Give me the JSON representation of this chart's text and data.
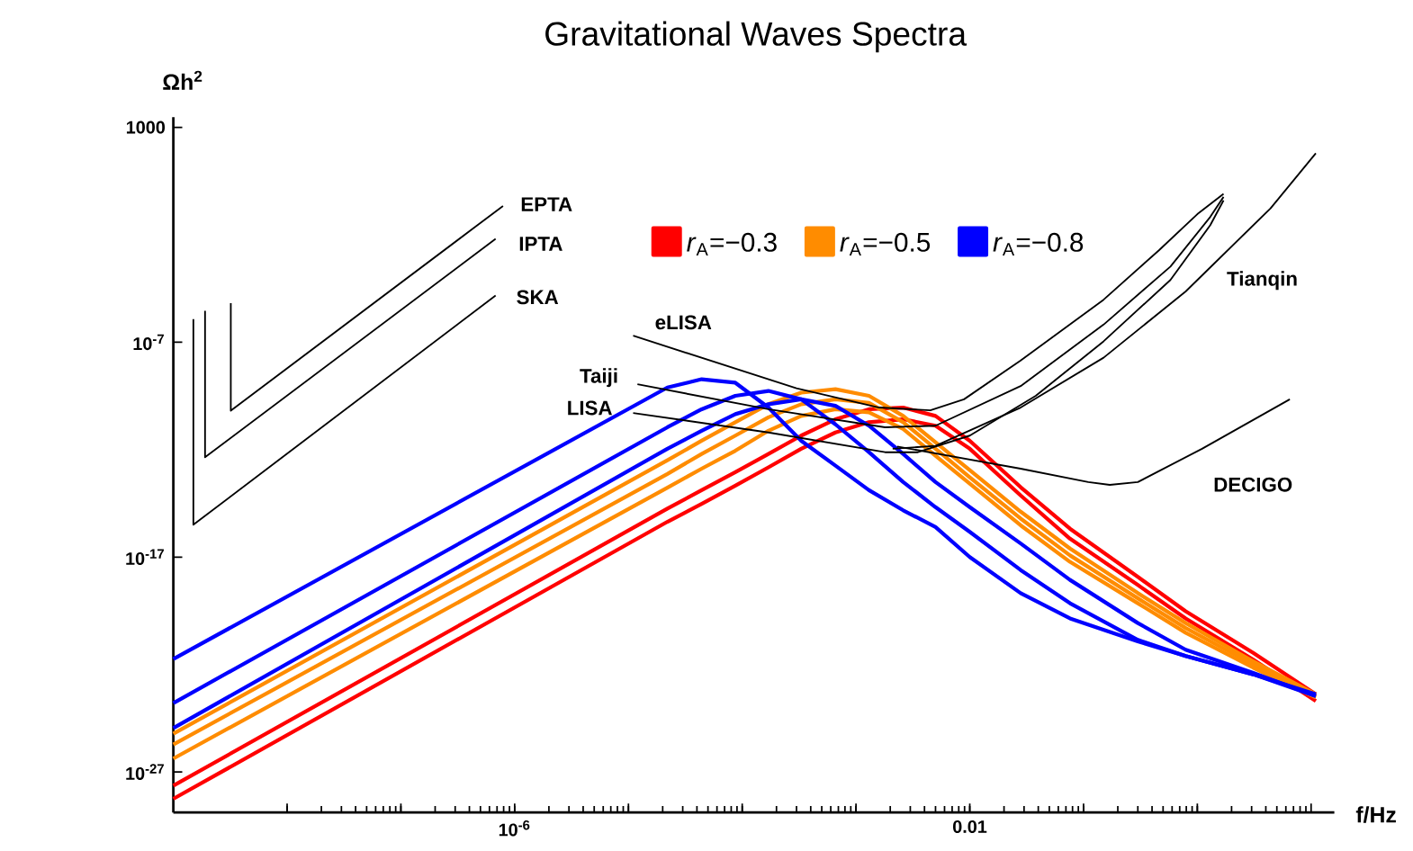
{
  "chart_data": {
    "type": "line",
    "title": "Gravitational Waves Spectra",
    "xlabel": "f/Hz",
    "ylabel": "Ωh$^{2}$",
    "log": "xy",
    "legend": "top",
    "xlim": [
      1e-09,
      16
    ],
    "ylim": [
      1.3e-29,
      3000
    ],
    "xticks": [
      {
        "value": 1e-08,
        "label": null
      },
      {
        "value": 1e-07,
        "label": null
      },
      {
        "value": 1e-06,
        "label": "10$^{-6}$"
      },
      {
        "value": 1e-05,
        "label": null
      },
      {
        "value": 0.0001,
        "label": null
      },
      {
        "value": 0.001,
        "label": null
      },
      0.01,
      {
        "value": 0.1,
        "label": null
      },
      {
        "value": 1,
        "label": null
      },
      {
        "value": 10,
        "label": null
      }
    ],
    "yticks": [
      {
        "value": 1e-27,
        "label": "10$^{-27}$"
      },
      {
        "value": 1e-17,
        "label": "10$^{-17}$"
      },
      {
        "value": 1e-07,
        "label": "10$^{-7}$"
      },
      1000
    ],
    "series": [
      {
        "name": "*r*$_{A}$=−0.3",
        "color": "#ff0000",
        "x": [
          1e-09,
          2.2e-05,
          4.4e-05,
          8.7e-05,
          0.00017,
          0.00033,
          0.00066,
          0.0013,
          0.0026,
          0.005,
          0.01,
          0.028,
          0.076,
          0.3,
          0.79,
          3.1,
          11
        ],
        "values": [
          2.3e-28,
          1.8e-15,
          1.3e-14,
          8.9e-14,
          6.3e-13,
          4.5e-12,
          2.6e-11,
          7.6e-11,
          9.1e-11,
          3.7e-11,
          2.6e-12,
          1.8e-14,
          2.1e-16,
          1.2e-18,
          3e-20,
          3.5e-22,
          4.1e-24
        ]
      },
      {
        "color": "#ff0000",
        "x": [
          1e-09,
          2.2e-05,
          4.4e-05,
          8.7e-05,
          0.00017,
          0.00033,
          0.00066,
          0.0013,
          0.0026,
          0.005,
          0.01,
          0.028,
          0.076,
          0.3,
          0.79,
          3.1,
          11
        ],
        "values": [
          5.6e-29,
          4.4e-16,
          3e-15,
          2.1e-14,
          1.5e-13,
          1.1e-12,
          6.3e-12,
          1.9e-11,
          2.6e-11,
          1.3e-11,
          1.1e-12,
          7.4e-15,
          7.2e-17,
          5e-19,
          1.4e-20,
          1.7e-22,
          2e-24
        ]
      },
      {
        "name": "*r*$_{A}$=−0.5",
        "color": "#ff8c00",
        "x": [
          1e-09,
          2.2e-05,
          4.4e-05,
          8.7e-05,
          0.00017,
          0.00033,
          0.00066,
          0.0013,
          0.0026,
          0.005,
          0.01,
          0.028,
          0.076,
          0.3,
          0.79,
          3.1,
          11
        ],
        "values": [
          6e-26,
          3.2e-13,
          2.6e-12,
          1.9e-11,
          1.3e-10,
          4.5e-10,
          6.5e-10,
          3.2e-10,
          3.7e-11,
          2.2e-12,
          1.1e-13,
          1.3e-15,
          2.5e-17,
          2.1e-19,
          8.5e-21,
          1.4e-22,
          4.1e-24
        ]
      },
      {
        "color": "#ff8c00",
        "x": [
          1e-09,
          2.2e-05,
          4.4e-05,
          8.7e-05,
          0.00017,
          0.00033,
          0.00066,
          0.0013,
          0.0026,
          0.005,
          0.01,
          0.028,
          0.076,
          0.3,
          0.79,
          3.1,
          11
        ],
        "values": [
          1.9e-26,
          7.4e-14,
          6.3e-13,
          4.5e-12,
          3.2e-11,
          1.3e-10,
          2.2e-10,
          1.5e-10,
          1.9e-11,
          1.1e-12,
          5.2e-14,
          6.2e-16,
          1.2e-17,
          1.2e-19,
          5e-21,
          1e-22,
          3.4e-24
        ]
      },
      {
        "color": "#ff8c00",
        "x": [
          1e-09,
          2.2e-05,
          4.4e-05,
          8.7e-05,
          0.00017,
          0.00033,
          0.00066,
          0.0013,
          0.0026,
          0.005,
          0.01,
          0.028,
          0.076,
          0.3,
          0.79,
          3.1,
          11
        ],
        "values": [
          4.2e-27,
          1.7e-14,
          1.3e-13,
          8.9e-13,
          7.6e-12,
          3.7e-11,
          7.6e-11,
          5.4e-11,
          9.1e-12,
          5.2e-13,
          2.6e-14,
          3e-16,
          6e-18,
          7.1e-20,
          3e-21,
          7.1e-23,
          2.9e-24
        ]
      },
      {
        "name": "*r*$_{A}$=−0.8",
        "color": "#0000ff",
        "x": [
          1e-09,
          2.2e-05,
          4.4e-05,
          8.7e-05,
          0.00017,
          0.00033,
          0.00066,
          0.0013,
          0.0026,
          0.005,
          0.01,
          0.028,
          0.076,
          0.3,
          0.79,
          3.1,
          11
        ],
        "values": [
          1.8e-22,
          7.8e-10,
          1.9e-09,
          1.3e-09,
          9.1e-11,
          2.6e-12,
          1.8e-13,
          1.3e-14,
          1.5e-15,
          2.5e-16,
          1e-17,
          2.1e-19,
          1.4e-20,
          1.2e-21,
          2.5e-22,
          3.5e-23,
          4.1e-24
        ]
      },
      {
        "color": "#0000ff",
        "x": [
          1e-09,
          2.2e-05,
          4.4e-05,
          8.7e-05,
          0.00017,
          0.00033,
          0.00066,
          0.0013,
          0.0026,
          0.005,
          0.01,
          0.028,
          0.076,
          0.3,
          0.79,
          3.1,
          11
        ],
        "values": [
          1.6e-24,
          1.1e-11,
          7.6e-11,
          3.2e-10,
          5.4e-10,
          2.2e-10,
          1.5e-11,
          7.6e-13,
          3.1e-14,
          2.1e-15,
          1.5e-16,
          2.5e-18,
          7.1e-20,
          1.4e-21,
          2.5e-22,
          3.5e-23,
          3.4e-24
        ]
      },
      {
        "color": "#0000ff",
        "x": [
          1e-09,
          2.2e-05,
          4.4e-05,
          8.7e-05,
          0.00017,
          0.00033,
          0.00066,
          0.0013,
          0.0026,
          0.005,
          0.01,
          0.028,
          0.076,
          0.3,
          0.79,
          3.1,
          11
        ],
        "values": [
          1.1e-25,
          1.1e-12,
          7.6e-12,
          4.5e-11,
          1.3e-10,
          2.2e-10,
          1.1e-10,
          1.3e-11,
          6.3e-13,
          3.1e-14,
          2.1e-15,
          4.3e-17,
          8.7e-19,
          8.5e-21,
          4.9e-22,
          4.1e-23,
          3.4e-24
        ]
      },
      {
        "name": "EPTA",
        "color": "#000000",
        "x": [
          3.2e-09,
          3.2e-09,
          7.9e-07
        ],
        "values": [
          6.6e-06,
          6.5e-11,
          0.22
        ]
      },
      {
        "name": "IPTA",
        "color": "#000000",
        "x": [
          1.9e-09,
          1.9e-09,
          6.8e-07
        ],
        "values": [
          2.9e-06,
          4.4e-13,
          0.0065
        ]
      },
      {
        "name": "SKA",
        "color": "#000000",
        "x": [
          1.5e-09,
          1.5e-09,
          6.8e-07
        ],
        "values": [
          1.2e-06,
          3.2e-16,
          1.5e-05
        ]
      },
      {
        "name": "eLISA",
        "color": "#000000",
        "x": [
          1.1e-05,
          0.0003,
          0.0016,
          0.0045,
          0.0089,
          0.028,
          0.15,
          0.46,
          1.0,
          1.7
        ],
        "values": [
          2e-07,
          7.2e-10,
          9.1e-11,
          6.8e-11,
          2.2e-10,
          1.4e-08,
          9.5e-06,
          0.0019,
          0.091,
          0.81
        ]
      },
      {
        "name": "Taiji",
        "color": "#000000",
        "x": [
          1.2e-05,
          0.00017,
          0.0018,
          0.005,
          0.028,
          0.15,
          0.58,
          1.3,
          1.7
        ],
        "values": [
          1.1e-09,
          7.6e-11,
          1.1e-11,
          1.3e-11,
          9.1e-10,
          6.6e-07,
          0.00033,
          0.068,
          0.58
        ]
      },
      {
        "name": "LISA",
        "color": "#000000",
        "x": [
          1.1e-05,
          0.00017,
          0.0018,
          0.0035,
          0.01,
          0.038,
          0.15,
          0.58,
          1.3,
          1.7
        ],
        "values": [
          5.1e-11,
          6.3e-12,
          7.6e-13,
          7.6e-13,
          4.5e-12,
          3.2e-10,
          1.1e-07,
          7.9e-05,
          0.028,
          0.4
        ]
      },
      {
        "name": "Tianqin",
        "color": "#000000",
        "x": [
          0.0021,
          0.005,
          0.028,
          0.15,
          0.79,
          4.4,
          11
        ],
        "values": [
          1.1e-12,
          1.5e-12,
          9.1e-11,
          1.9e-08,
          2.3e-05,
          0.17,
          62
        ]
      },
      {
        "name": "DECIGO",
        "color": "#000000",
        "x": [
          0.0023,
          0.028,
          0.11,
          0.17,
          0.3,
          1.1,
          6.5
        ],
        "values": [
          1.4e-12,
          1.3e-13,
          3.1e-14,
          2.3e-14,
          3.1e-14,
          1.1e-12,
          2.2e-10
        ]
      }
    ]
  }
}
